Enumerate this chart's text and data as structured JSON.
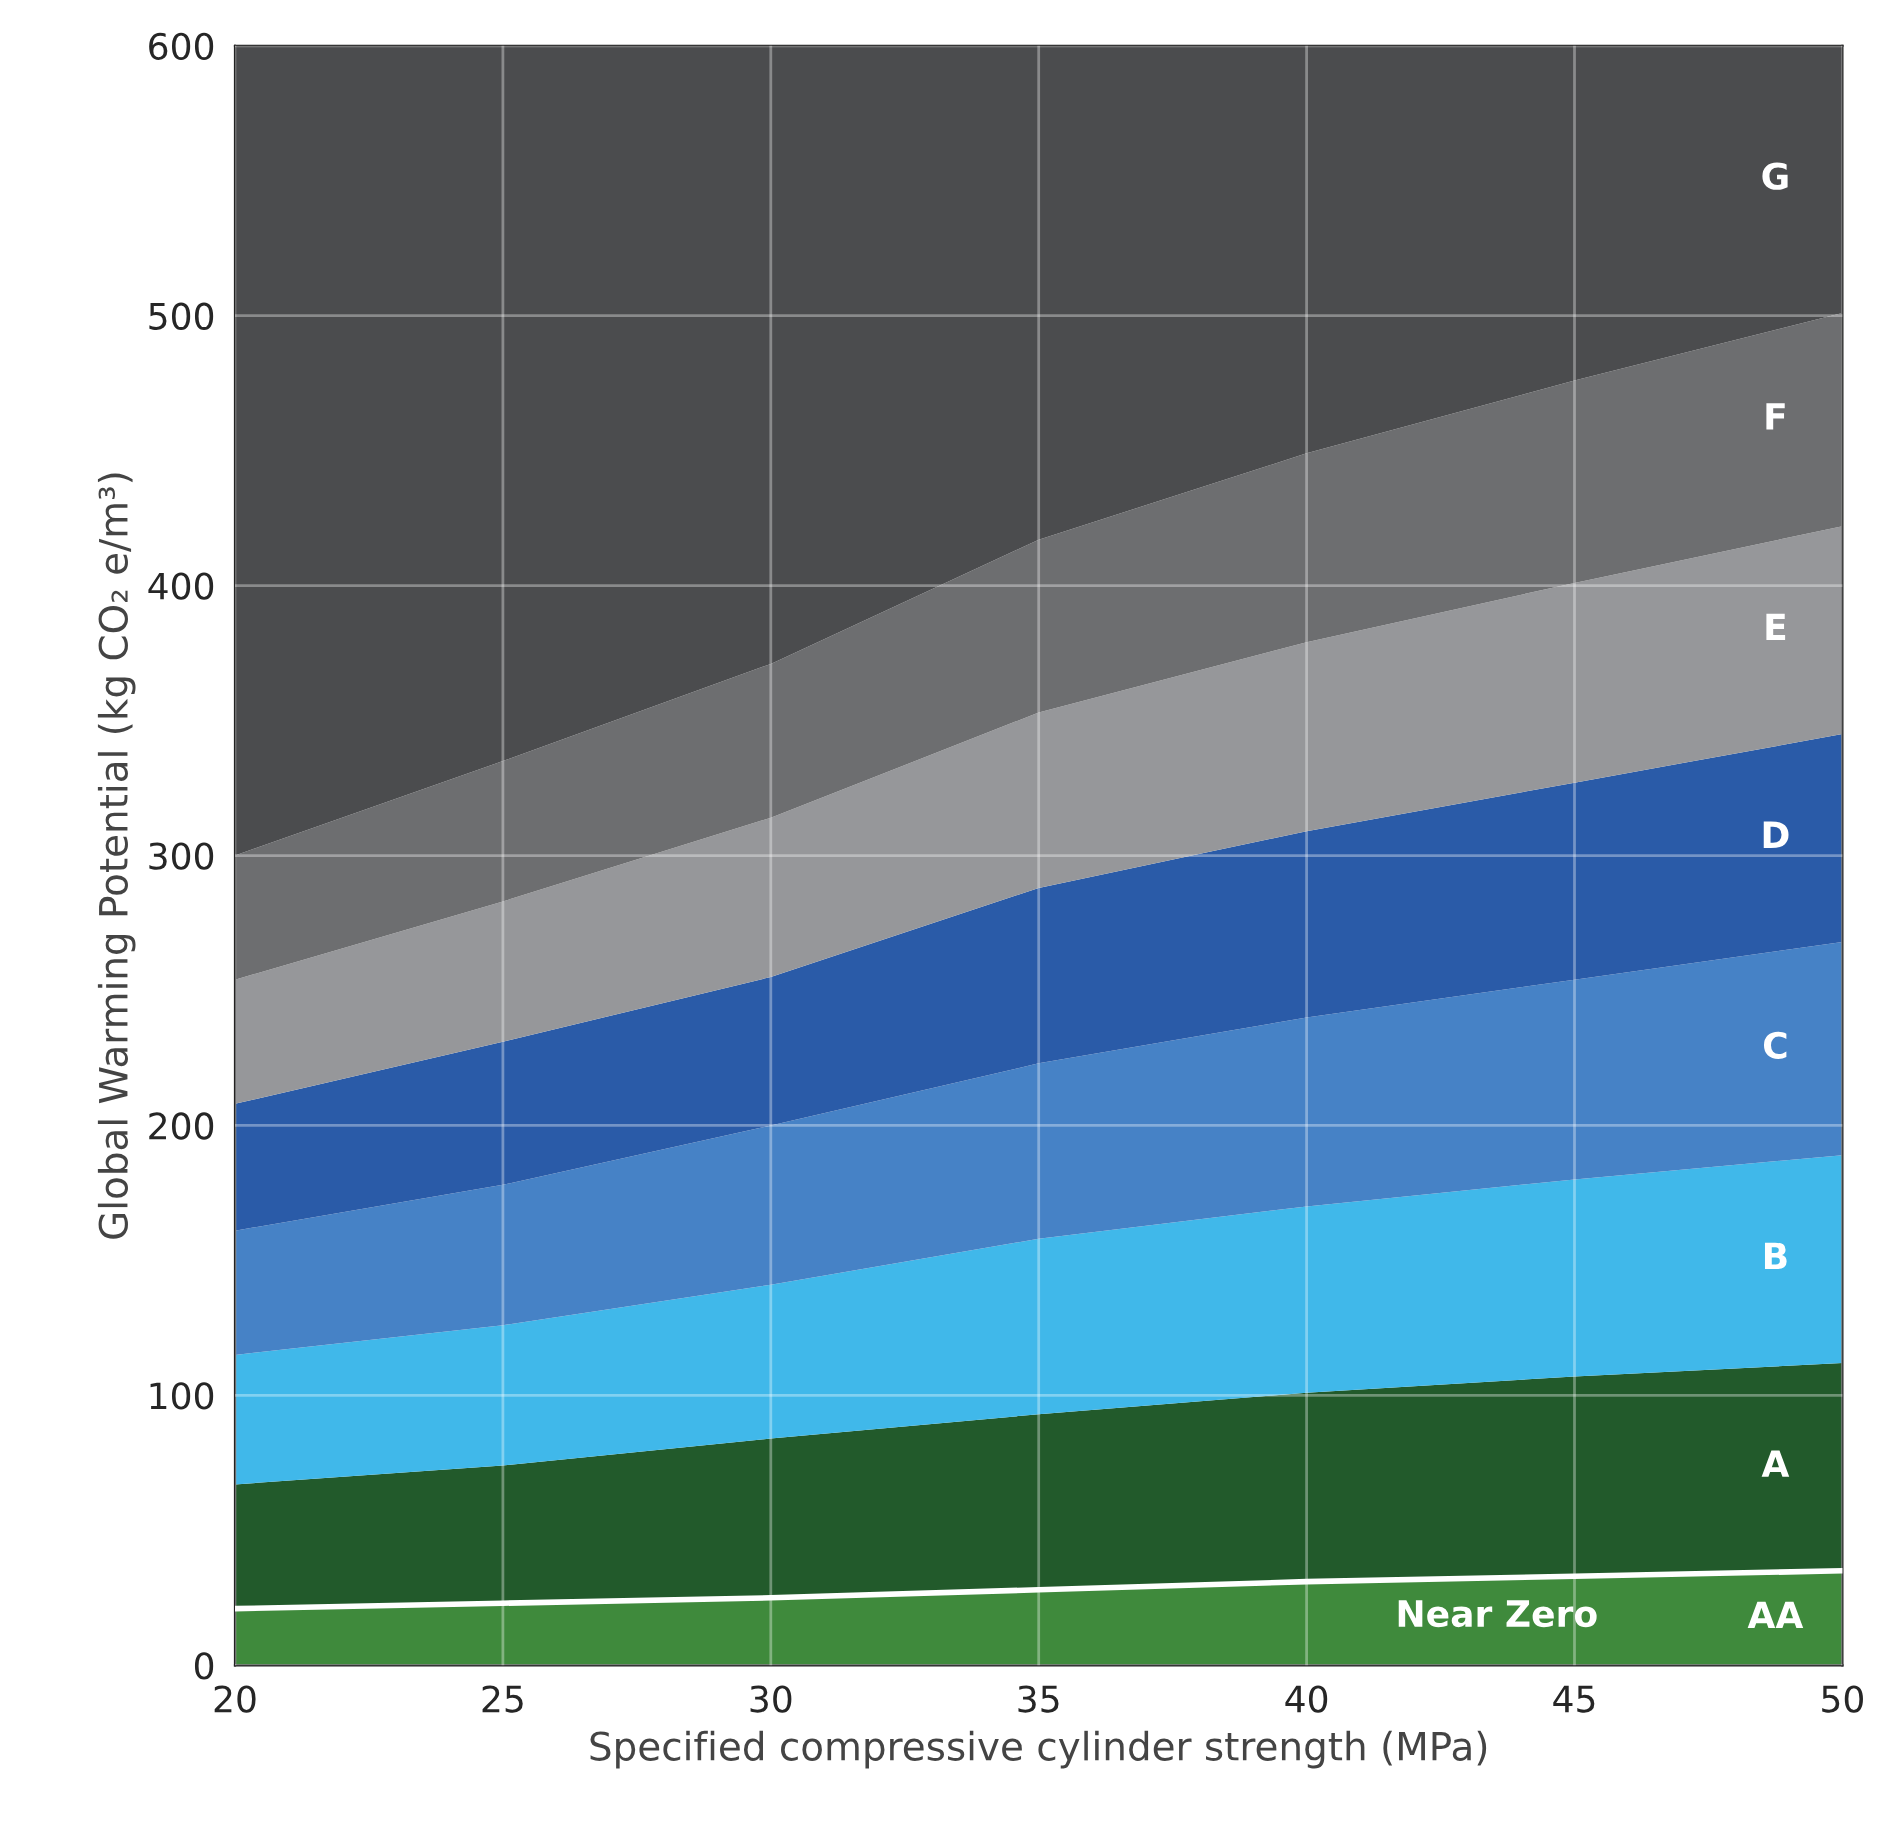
{
  "chart_data": {
    "type": "area",
    "stacked": true,
    "xlabel": "Specified compressive cylinder strength (MPa)",
    "ylabel": "Global Warming Potential (kg CO₂ e/m³)",
    "x": [
      20,
      25,
      30,
      35,
      40,
      45,
      50
    ],
    "series": [
      {
        "name": "AA",
        "color": "#3f8a3c",
        "values": [
          21,
          23,
          25,
          28,
          31,
          33,
          35
        ]
      },
      {
        "name": "A",
        "color": "#225a2b",
        "values": [
          46,
          51,
          59,
          65,
          70,
          74,
          77
        ]
      },
      {
        "name": "B",
        "color": "#40b8ea",
        "values": [
          48,
          52,
          57,
          65,
          69,
          73,
          77
        ]
      },
      {
        "name": "C",
        "color": "#4682c6",
        "values": [
          46,
          52,
          59,
          65,
          70,
          74,
          79
        ]
      },
      {
        "name": "D",
        "color": "#2a5ba8",
        "values": [
          47,
          53,
          55,
          65,
          69,
          73,
          77
        ]
      },
      {
        "name": "E",
        "color": "#96979a",
        "values": [
          46,
          52,
          59,
          65,
          70,
          74,
          77
        ]
      },
      {
        "name": "F",
        "color": "#6d6e70",
        "values": [
          46,
          52,
          57,
          64,
          70,
          75,
          79
        ]
      },
      {
        "name": "G",
        "color": "#4b4c4e",
        "values": [
          300,
          265,
          229,
          183,
          151,
          124,
          99
        ]
      }
    ],
    "annotations": [
      "Near Zero"
    ],
    "xlim": [
      20,
      50
    ],
    "ylim": [
      0,
      600
    ],
    "xticks": [
      20,
      25,
      30,
      35,
      40,
      45,
      50
    ],
    "yticks": [
      0,
      100,
      200,
      300,
      400,
      500,
      600
    ],
    "grid": true,
    "legend": false
  }
}
